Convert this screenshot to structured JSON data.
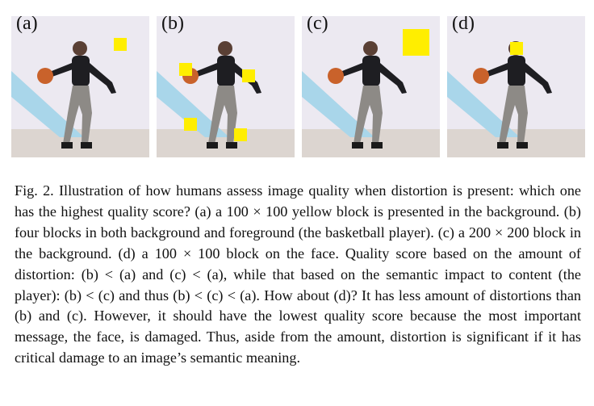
{
  "figure": {
    "panels": [
      {
        "label": "(a)",
        "blocks": "one small block in the background"
      },
      {
        "label": "(b)",
        "blocks": "four blocks in background and foreground"
      },
      {
        "label": "(c)",
        "blocks": "one large block in the background"
      },
      {
        "label": "(d)",
        "blocks": "one small block on the face"
      }
    ],
    "colors": {
      "block": "#ffee00",
      "wall": "#ece9f1",
      "floor": "#dcd5d0",
      "stripe": "#a9d6ea"
    }
  },
  "caption": {
    "text": "Fig. 2.   Illustration of how humans assess image quality when distortion is present: which one has the highest quality score? (a) a 100 × 100 yellow block is presented in the background. (b) four blocks in both background and foreground (the basketball player). (c) a 200 × 200 block in the background. (d) a 100 × 100 block on the face. Quality score based on the amount of distortion: (b) < (a) and (c) < (a), while that based on the semantic impact to content (the player): (b) < (c) and thus (b) < (c) < (a). How about (d)? It has less amount of distortions than (b) and (c). However, it should have the lowest quality score because the most important message, the face, is damaged. Thus, aside from the amount, distortion is significant if it has critical damage to an image’s semantic meaning."
  }
}
